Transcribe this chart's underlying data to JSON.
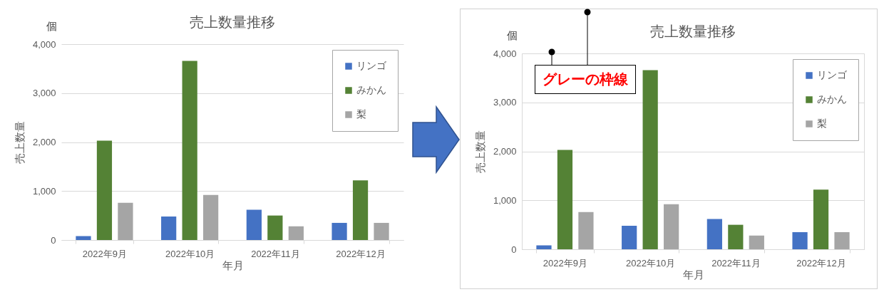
{
  "chart_data": [
    {
      "type": "bar",
      "title": "売上数量推移",
      "xlabel": "年月",
      "ylabel": "売上数量",
      "annotations": [
        "個"
      ],
      "categories": [
        "2022年9月",
        "2022年10月",
        "2022年11月",
        "2022年12月"
      ],
      "series": [
        {
          "name": "リンゴ",
          "color": "#4472c4",
          "values": [
            80,
            480,
            620,
            350
          ]
        },
        {
          "name": "みかん",
          "color": "#548235",
          "values": [
            2030,
            3660,
            500,
            1220
          ]
        },
        {
          "name": "梨",
          "color": "#a5a5a5",
          "values": [
            760,
            920,
            280,
            350
          ]
        }
      ],
      "ylim": [
        0,
        4000
      ],
      "yticks": [
        0,
        {
          "value": 1000,
          "label": "1,000"
        },
        {
          "value": 2000,
          "label": "2,000"
        },
        {
          "value": 3000,
          "label": "3,000"
        },
        {
          "value": 4000,
          "label": "4,000"
        }
      ],
      "grid": "y",
      "legend": "top right"
    },
    {
      "type": "bar",
      "title": "売上数量推移",
      "xlabel": "年月",
      "ylabel": "売上数量",
      "annotations": [
        "個",
        "グレーの枠線"
      ],
      "categories": [
        "2022年9月",
        "2022年10月",
        "2022年11月",
        "2022年12月"
      ],
      "series": [
        {
          "name": "リンゴ",
          "color": "#4472c4",
          "values": [
            80,
            480,
            620,
            350
          ]
        },
        {
          "name": "みかん",
          "color": "#548235",
          "values": [
            2030,
            3660,
            500,
            1220
          ]
        },
        {
          "name": "梨",
          "color": "#a5a5a5",
          "values": [
            760,
            920,
            280,
            350
          ]
        }
      ],
      "ylim": [
        0,
        4000
      ],
      "yticks": [
        0,
        {
          "value": 1000,
          "label": "1,000"
        },
        {
          "value": 2000,
          "label": "2,000"
        },
        {
          "value": 3000,
          "label": "3,000"
        },
        {
          "value": 4000,
          "label": "4,000"
        }
      ],
      "grid": "y",
      "legend": "top right"
    }
  ]
}
